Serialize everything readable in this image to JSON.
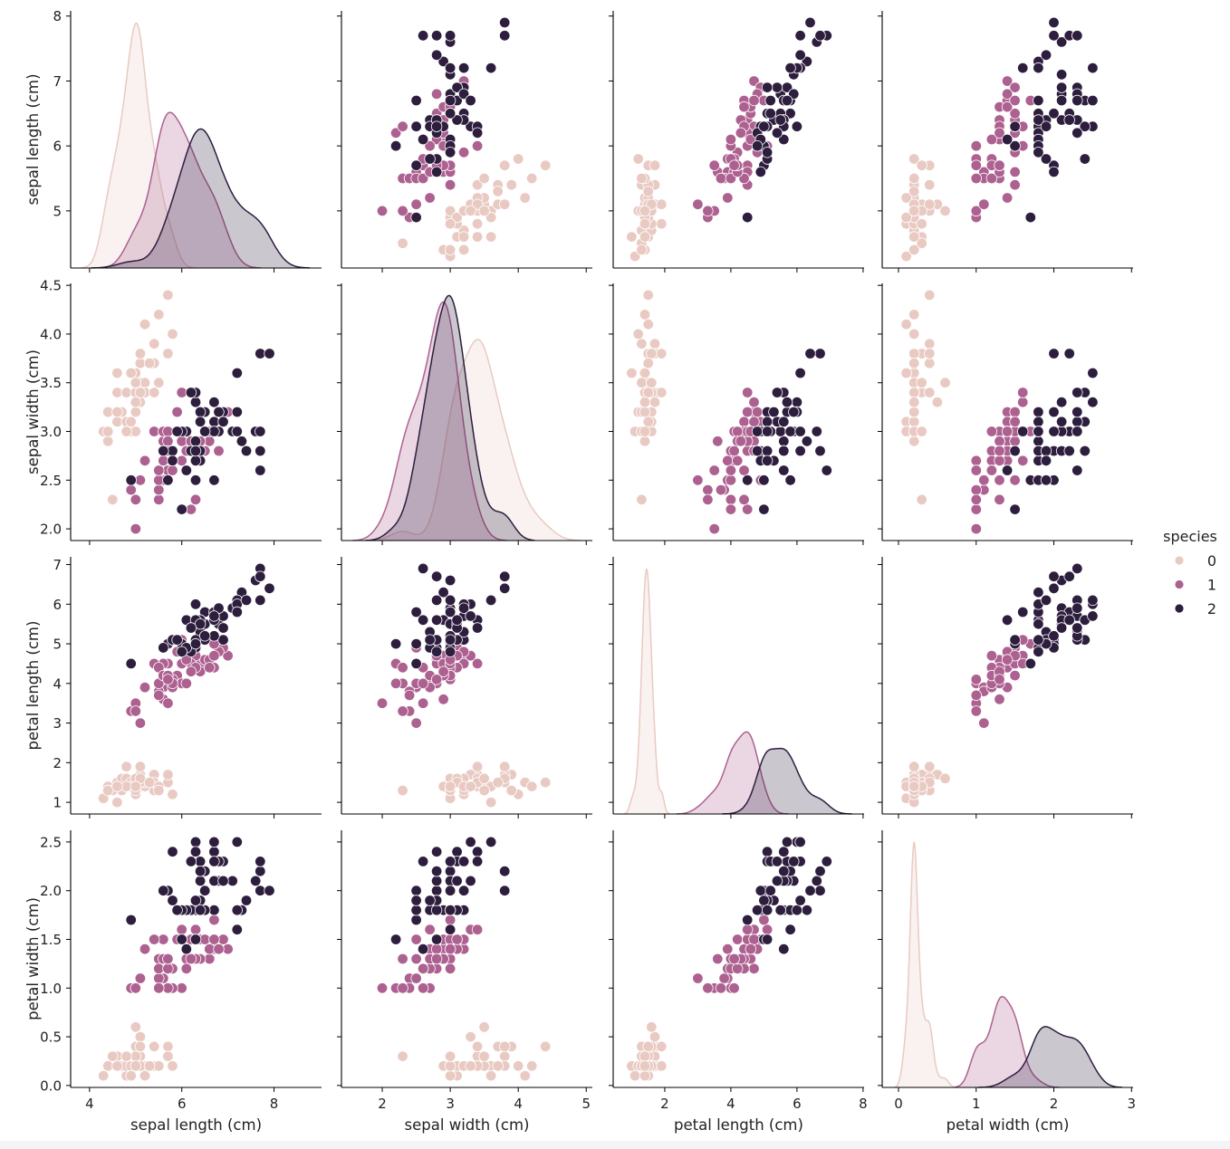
{
  "chart_data": {
    "type": "scatter-matrix",
    "diagonal": "kde",
    "variables": [
      {
        "label": "sepal length (cm)",
        "xlim": [
          3.59,
          9.03
        ],
        "ylim": [
          4.12,
          8.08
        ],
        "xticks": [
          4,
          6,
          8
        ],
        "yticks": [
          5,
          6,
          7,
          8
        ]
      },
      {
        "label": "sepal width (cm)",
        "xlim": [
          1.4,
          5.09
        ],
        "ylim": [
          1.88,
          4.52
        ],
        "xticks": [
          2,
          3,
          4,
          5
        ],
        "yticks": [
          2.0,
          2.5,
          3.0,
          3.5,
          4.0,
          4.5
        ]
      },
      {
        "label": "petal length (cm)",
        "xlim": [
          0.44,
          8.03
        ],
        "ylim": [
          0.705,
          7.195
        ],
        "xticks": [
          2,
          4,
          6,
          8
        ],
        "yticks": [
          1,
          2,
          3,
          4,
          5,
          6,
          7
        ]
      },
      {
        "label": "petal width (cm)",
        "xlim": [
          -0.21,
          3.02
        ],
        "ylim": [
          -0.02,
          2.62
        ],
        "xticks": [
          0,
          1,
          2,
          3
        ],
        "yticks": [
          0.0,
          0.5,
          1.0,
          1.5,
          2.0,
          2.5
        ]
      }
    ],
    "legend": {
      "title": "species",
      "position": "right",
      "entries": [
        "0",
        "1",
        "2"
      ]
    },
    "colors": [
      "#e9cac3",
      "#ad6190",
      "#2d1e3e"
    ],
    "grid": false,
    "data": {
      "0": [
        [
          5.1,
          3.5,
          1.4,
          0.2
        ],
        [
          4.9,
          3.0,
          1.4,
          0.2
        ],
        [
          4.7,
          3.2,
          1.3,
          0.2
        ],
        [
          4.6,
          3.1,
          1.5,
          0.2
        ],
        [
          5.0,
          3.6,
          1.4,
          0.2
        ],
        [
          5.4,
          3.9,
          1.7,
          0.4
        ],
        [
          4.6,
          3.4,
          1.4,
          0.3
        ],
        [
          5.0,
          3.4,
          1.5,
          0.2
        ],
        [
          4.4,
          2.9,
          1.4,
          0.2
        ],
        [
          4.9,
          3.1,
          1.5,
          0.1
        ],
        [
          5.4,
          3.7,
          1.5,
          0.2
        ],
        [
          4.8,
          3.4,
          1.6,
          0.2
        ],
        [
          4.8,
          3.0,
          1.4,
          0.1
        ],
        [
          4.3,
          3.0,
          1.1,
          0.1
        ],
        [
          5.8,
          4.0,
          1.2,
          0.2
        ],
        [
          5.7,
          4.4,
          1.5,
          0.4
        ],
        [
          5.4,
          3.9,
          1.3,
          0.4
        ],
        [
          5.1,
          3.5,
          1.4,
          0.3
        ],
        [
          5.7,
          3.8,
          1.7,
          0.3
        ],
        [
          5.1,
          3.8,
          1.5,
          0.3
        ],
        [
          5.4,
          3.4,
          1.7,
          0.2
        ],
        [
          5.1,
          3.7,
          1.5,
          0.4
        ],
        [
          4.6,
          3.6,
          1.0,
          0.2
        ],
        [
          5.1,
          3.3,
          1.7,
          0.5
        ],
        [
          4.8,
          3.4,
          1.9,
          0.2
        ],
        [
          5.0,
          3.0,
          1.6,
          0.2
        ],
        [
          5.0,
          3.4,
          1.6,
          0.4
        ],
        [
          5.2,
          3.5,
          1.5,
          0.2
        ],
        [
          5.2,
          3.4,
          1.4,
          0.2
        ],
        [
          4.7,
          3.2,
          1.6,
          0.2
        ],
        [
          4.8,
          3.1,
          1.6,
          0.2
        ],
        [
          5.4,
          3.4,
          1.5,
          0.4
        ],
        [
          5.2,
          4.1,
          1.5,
          0.1
        ],
        [
          5.5,
          4.2,
          1.4,
          0.2
        ],
        [
          4.9,
          3.1,
          1.5,
          0.2
        ],
        [
          5.0,
          3.2,
          1.2,
          0.2
        ],
        [
          5.5,
          3.5,
          1.3,
          0.2
        ],
        [
          4.9,
          3.6,
          1.4,
          0.1
        ],
        [
          4.4,
          3.0,
          1.3,
          0.2
        ],
        [
          5.1,
          3.4,
          1.5,
          0.2
        ],
        [
          5.0,
          3.5,
          1.3,
          0.3
        ],
        [
          4.5,
          2.3,
          1.3,
          0.3
        ],
        [
          4.4,
          3.2,
          1.3,
          0.2
        ],
        [
          5.0,
          3.5,
          1.6,
          0.6
        ],
        [
          5.1,
          3.8,
          1.9,
          0.4
        ],
        [
          4.8,
          3.0,
          1.4,
          0.3
        ],
        [
          5.1,
          3.8,
          1.6,
          0.2
        ],
        [
          4.6,
          3.2,
          1.4,
          0.2
        ],
        [
          5.3,
          3.7,
          1.5,
          0.2
        ],
        [
          5.0,
          3.3,
          1.4,
          0.2
        ]
      ],
      "1": [
        [
          7.0,
          3.2,
          4.7,
          1.4
        ],
        [
          6.4,
          3.2,
          4.5,
          1.5
        ],
        [
          6.9,
          3.1,
          4.9,
          1.5
        ],
        [
          5.5,
          2.3,
          4.0,
          1.3
        ],
        [
          6.5,
          2.8,
          4.6,
          1.5
        ],
        [
          5.7,
          2.8,
          4.5,
          1.3
        ],
        [
          6.3,
          3.3,
          4.7,
          1.6
        ],
        [
          4.9,
          2.4,
          3.3,
          1.0
        ],
        [
          6.6,
          2.9,
          4.6,
          1.3
        ],
        [
          5.2,
          2.7,
          3.9,
          1.4
        ],
        [
          5.0,
          2.0,
          3.5,
          1.0
        ],
        [
          5.9,
          3.0,
          4.2,
          1.5
        ],
        [
          6.0,
          2.2,
          4.0,
          1.0
        ],
        [
          6.1,
          2.9,
          4.7,
          1.4
        ],
        [
          5.6,
          2.9,
          3.6,
          1.3
        ],
        [
          6.7,
          3.1,
          4.4,
          1.4
        ],
        [
          5.6,
          3.0,
          4.5,
          1.5
        ],
        [
          5.8,
          2.7,
          4.1,
          1.0
        ],
        [
          6.2,
          2.2,
          4.5,
          1.5
        ],
        [
          5.6,
          2.5,
          3.9,
          1.1
        ],
        [
          5.9,
          3.2,
          4.8,
          1.8
        ],
        [
          6.1,
          2.8,
          4.0,
          1.3
        ],
        [
          6.3,
          2.5,
          4.9,
          1.5
        ],
        [
          6.1,
          2.8,
          4.7,
          1.2
        ],
        [
          6.4,
          2.9,
          4.3,
          1.3
        ],
        [
          6.6,
          3.0,
          4.4,
          1.4
        ],
        [
          6.8,
          2.8,
          4.8,
          1.4
        ],
        [
          6.7,
          3.0,
          5.0,
          1.7
        ],
        [
          6.0,
          2.9,
          4.5,
          1.5
        ],
        [
          5.7,
          2.6,
          3.5,
          1.0
        ],
        [
          5.5,
          2.4,
          3.8,
          1.1
        ],
        [
          5.5,
          2.4,
          3.7,
          1.0
        ],
        [
          5.8,
          2.7,
          3.9,
          1.2
        ],
        [
          6.0,
          2.7,
          5.1,
          1.6
        ],
        [
          5.4,
          3.0,
          4.5,
          1.5
        ],
        [
          6.0,
          3.4,
          4.5,
          1.6
        ],
        [
          6.7,
          3.1,
          4.7,
          1.5
        ],
        [
          6.3,
          2.3,
          4.4,
          1.3
        ],
        [
          5.6,
          3.0,
          4.1,
          1.3
        ],
        [
          5.5,
          2.5,
          4.0,
          1.3
        ],
        [
          5.5,
          2.6,
          4.4,
          1.2
        ],
        [
          6.1,
          3.0,
          4.6,
          1.4
        ],
        [
          5.8,
          2.6,
          4.0,
          1.2
        ],
        [
          5.0,
          2.3,
          3.3,
          1.0
        ],
        [
          5.6,
          2.7,
          4.2,
          1.3
        ],
        [
          5.7,
          3.0,
          4.2,
          1.2
        ],
        [
          5.7,
          2.9,
          4.2,
          1.3
        ],
        [
          6.2,
          2.9,
          4.3,
          1.3
        ],
        [
          5.1,
          2.5,
          3.0,
          1.1
        ],
        [
          5.7,
          2.8,
          4.1,
          1.3
        ]
      ],
      "2": [
        [
          6.3,
          3.3,
          6.0,
          2.5
        ],
        [
          5.8,
          2.7,
          5.1,
          1.9
        ],
        [
          7.1,
          3.0,
          5.9,
          2.1
        ],
        [
          6.3,
          2.9,
          5.6,
          1.8
        ],
        [
          6.5,
          3.0,
          5.8,
          2.2
        ],
        [
          7.6,
          3.0,
          6.6,
          2.1
        ],
        [
          4.9,
          2.5,
          4.5,
          1.7
        ],
        [
          7.3,
          2.9,
          6.3,
          1.8
        ],
        [
          6.7,
          2.5,
          5.8,
          1.8
        ],
        [
          7.2,
          3.6,
          6.1,
          2.5
        ],
        [
          6.5,
          3.2,
          5.1,
          2.0
        ],
        [
          6.4,
          2.7,
          5.3,
          1.9
        ],
        [
          6.8,
          3.0,
          5.5,
          2.1
        ],
        [
          5.7,
          2.5,
          5.0,
          2.0
        ],
        [
          5.8,
          2.8,
          5.1,
          2.4
        ],
        [
          6.4,
          3.2,
          5.3,
          2.3
        ],
        [
          6.5,
          3.0,
          5.5,
          1.8
        ],
        [
          7.7,
          3.8,
          6.7,
          2.2
        ],
        [
          7.7,
          2.6,
          6.9,
          2.3
        ],
        [
          6.0,
          2.2,
          5.0,
          1.5
        ],
        [
          6.9,
          3.2,
          5.7,
          2.3
        ],
        [
          5.6,
          2.8,
          4.9,
          2.0
        ],
        [
          7.7,
          2.8,
          6.7,
          2.0
        ],
        [
          6.3,
          2.7,
          4.9,
          1.8
        ],
        [
          6.7,
          3.3,
          5.7,
          2.1
        ],
        [
          7.2,
          3.2,
          6.0,
          1.8
        ],
        [
          6.2,
          2.8,
          4.8,
          1.8
        ],
        [
          6.1,
          3.0,
          4.9,
          1.8
        ],
        [
          6.4,
          2.8,
          5.6,
          2.1
        ],
        [
          7.2,
          3.0,
          5.8,
          1.6
        ],
        [
          7.4,
          2.8,
          6.1,
          1.9
        ],
        [
          7.9,
          3.8,
          6.4,
          2.0
        ],
        [
          6.4,
          2.8,
          5.6,
          2.2
        ],
        [
          6.3,
          2.8,
          5.1,
          1.5
        ],
        [
          6.1,
          2.6,
          5.6,
          1.4
        ],
        [
          7.7,
          3.0,
          6.1,
          2.3
        ],
        [
          6.3,
          3.4,
          5.6,
          2.4
        ],
        [
          6.4,
          3.1,
          5.5,
          1.8
        ],
        [
          6.0,
          3.0,
          4.8,
          1.8
        ],
        [
          6.9,
          3.1,
          5.4,
          2.1
        ],
        [
          6.7,
          3.1,
          5.6,
          2.4
        ],
        [
          6.9,
          3.1,
          5.1,
          2.3
        ],
        [
          5.8,
          2.7,
          5.1,
          1.9
        ],
        [
          6.8,
          3.2,
          5.9,
          2.3
        ],
        [
          6.7,
          3.3,
          5.7,
          2.5
        ],
        [
          6.7,
          3.0,
          5.2,
          2.3
        ],
        [
          6.3,
          2.5,
          5.0,
          1.9
        ],
        [
          6.5,
          3.0,
          5.2,
          2.0
        ],
        [
          6.2,
          3.4,
          5.4,
          2.3
        ],
        [
          5.9,
          3.0,
          5.1,
          1.8
        ]
      ]
    }
  }
}
